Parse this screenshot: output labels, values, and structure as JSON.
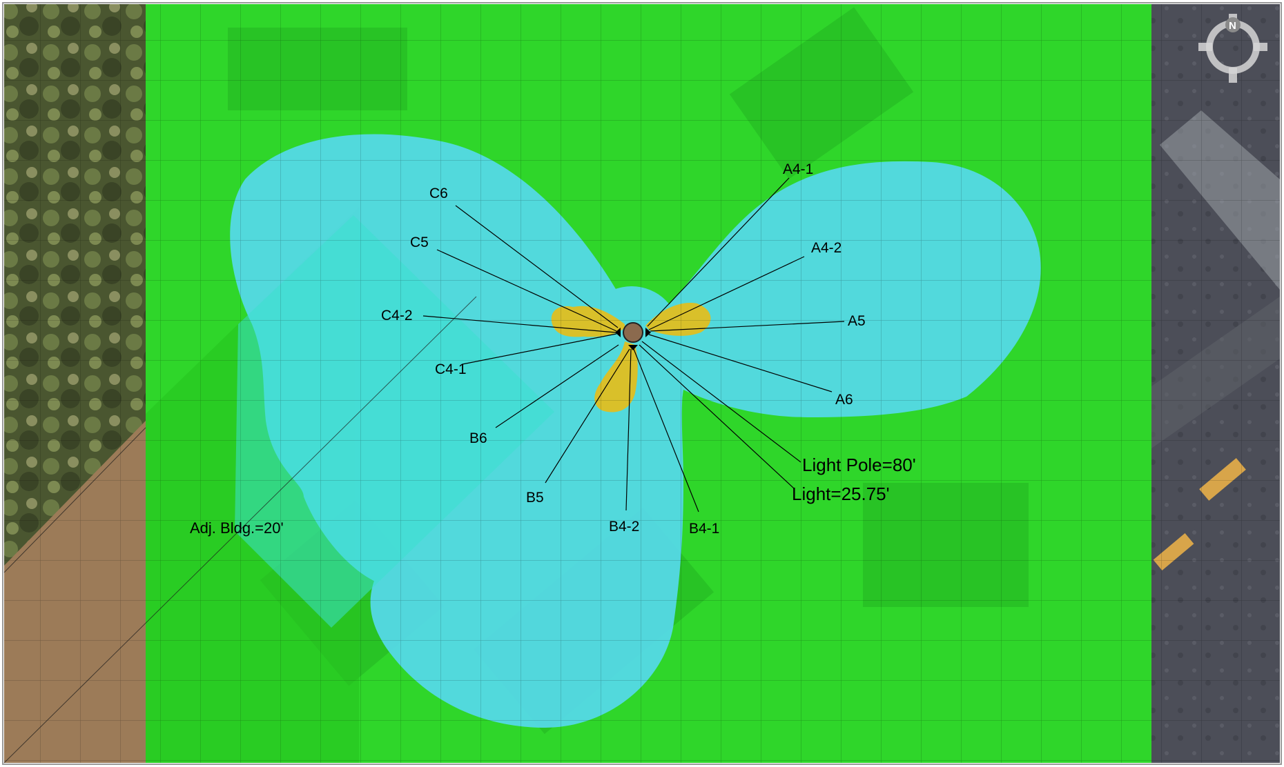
{
  "compass": {
    "north_label": "N"
  },
  "legend_colors": {
    "background_green": "#2fd62a",
    "coverage_blue": "#56d9ec",
    "hotspot_yellow": "#d9c02a",
    "adjacent_building": "#9c7b58",
    "pole_brown": "#8b6a4e"
  },
  "labels": {
    "a4_1": "A4-1",
    "a4_2": "A4-2",
    "a5": "A5",
    "a6": "A6",
    "c6": "C6",
    "c5": "C5",
    "c4_2": "C4-2",
    "c4_1": "C4-1",
    "b6": "B6",
    "b5": "B5",
    "b4_2": "B4-2",
    "b4_1": "B4-1",
    "light_pole": "Light Pole=80'",
    "light": "Light=25.75'",
    "adj_bldg": "Adj. Bldg.=20'"
  }
}
